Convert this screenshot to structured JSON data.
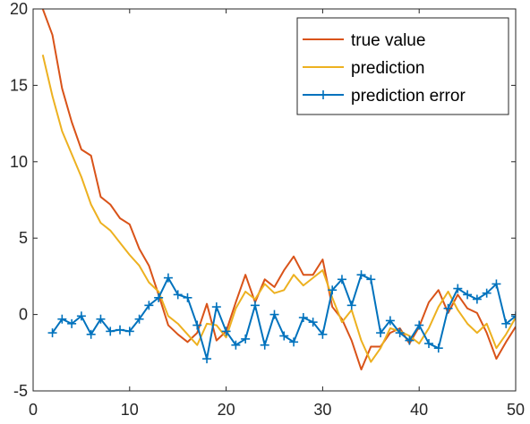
{
  "chart_data": {
    "type": "line",
    "title": "",
    "xlabel": "",
    "ylabel": "",
    "xlim": [
      0,
      50
    ],
    "ylim": [
      -5,
      20
    ],
    "xticks": [
      0,
      10,
      20,
      30,
      40,
      50
    ],
    "yticks": [
      -5,
      0,
      5,
      10,
      15,
      20
    ],
    "xtick_labels": [
      "0",
      "10",
      "20",
      "30",
      "40",
      "50"
    ],
    "ytick_labels": [
      "-5",
      "0",
      "5",
      "10",
      "15",
      "20"
    ],
    "grid": false,
    "legend_position": "top-right",
    "series": [
      {
        "name": "true value",
        "color": "#d95319",
        "marker": "none",
        "x": [
          1,
          2,
          3,
          4,
          5,
          6,
          7,
          8,
          9,
          10,
          11,
          12,
          13,
          14,
          15,
          16,
          17,
          18,
          19,
          20,
          21,
          22,
          23,
          24,
          25,
          26,
          27,
          28,
          29,
          30,
          31,
          32,
          33,
          34,
          35,
          36,
          37,
          38,
          39,
          40,
          41,
          42,
          43,
          44,
          45,
          46,
          47,
          48,
          49,
          50
        ],
        "y": [
          20,
          18.3,
          14.8,
          12.6,
          10.8,
          10.4,
          7.7,
          7.2,
          6.3,
          5.9,
          4.3,
          3.2,
          1.3,
          -0.7,
          -1.3,
          -1.8,
          -1.2,
          0.7,
          -1.7,
          -1.1,
          0.8,
          2.6,
          0.8,
          2.3,
          1.8,
          2.9,
          3.8,
          2.6,
          2.6,
          3.6,
          0.5,
          -0.3,
          -1.7,
          -3.6,
          -2.1,
          -2.1,
          -1.2,
          -0.9,
          -1.9,
          -0.8,
          0.8,
          1.6,
          0.1,
          1.3,
          0.4,
          0.1,
          -1.2,
          -2.9,
          -1.8,
          -0.8
        ]
      },
      {
        "name": "prediction",
        "color": "#edb120",
        "marker": "none",
        "x": [
          1,
          2,
          3,
          4,
          5,
          6,
          7,
          8,
          9,
          10,
          11,
          12,
          13,
          14,
          15,
          16,
          17,
          18,
          19,
          20,
          21,
          22,
          23,
          24,
          25,
          26,
          27,
          28,
          29,
          30,
          31,
          32,
          33,
          34,
          35,
          36,
          37,
          38,
          39,
          40,
          41,
          42,
          43,
          44,
          45,
          46,
          47,
          48,
          49,
          50
        ],
        "y": [
          17,
          14.3,
          12,
          10.5,
          9,
          7.2,
          6,
          5.5,
          4.7,
          3.9,
          3.2,
          2.1,
          1.5,
          -0.1,
          -0.6,
          -1.3,
          -2,
          -0.6,
          -0.7,
          -1.5,
          0.4,
          1.5,
          1,
          2,
          1.4,
          1.6,
          2.6,
          1.9,
          2.4,
          2.9,
          1.1,
          -0.5,
          0.3,
          -1.7,
          -3.1,
          -2.2,
          -0.9,
          -1.1,
          -1.4,
          -1.9,
          -0.9,
          0.5,
          1.5,
          0.3,
          -0.6,
          -1.2,
          -0.6,
          -2.2,
          -1.3,
          -0.2
        ]
      },
      {
        "name": "prediction error",
        "color": "#0072bd",
        "marker": "+",
        "x": [
          2,
          3,
          4,
          5,
          6,
          7,
          8,
          9,
          10,
          11,
          12,
          13,
          14,
          15,
          16,
          17,
          18,
          19,
          20,
          21,
          22,
          23,
          24,
          25,
          26,
          27,
          28,
          29,
          30,
          31,
          32,
          33,
          34,
          35,
          36,
          37,
          38,
          39,
          40,
          41,
          42,
          43,
          44,
          45,
          46,
          47,
          48,
          49,
          50
        ],
        "y": [
          -1.2,
          -0.3,
          -0.6,
          -0.1,
          -1.3,
          -0.3,
          -1.1,
          -1,
          -1.1,
          -0.3,
          0.6,
          1.1,
          2.4,
          1.3,
          1.1,
          -0.7,
          -2.9,
          0.5,
          -1.1,
          -2,
          -1.6,
          0.6,
          -2,
          0,
          -1.4,
          -1.8,
          -0.2,
          -0.5,
          -1.3,
          1.6,
          2.3,
          0.6,
          2.6,
          2.3,
          -1.2,
          -0.4,
          -1.2,
          -1.7,
          -0.7,
          -1.9,
          -2.2,
          0.4,
          1.7,
          1.3,
          1,
          1.4,
          2,
          -0.6,
          -0.1
        ]
      }
    ]
  }
}
